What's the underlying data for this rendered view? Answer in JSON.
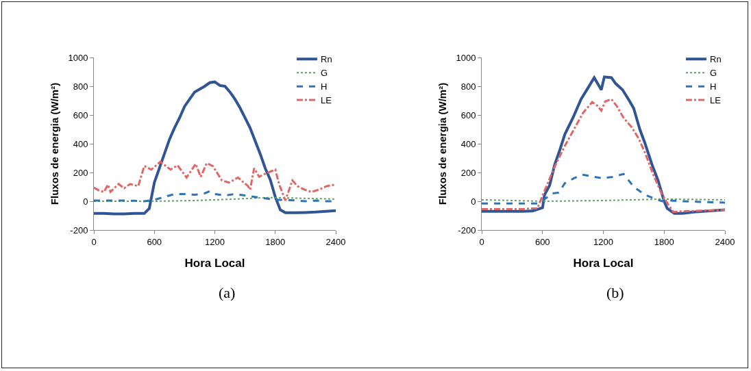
{
  "chart_data": [
    {
      "type": "line",
      "xlabel": "Hora Local",
      "ylabel": "Fluxos de energia (W/m²)",
      "annotations": [
        "(a)"
      ],
      "xlim": [
        0,
        2400
      ],
      "xticks": [
        0,
        600,
        1200,
        1800,
        2400
      ],
      "ylim": [
        -200,
        1000
      ],
      "yticks": [
        -200,
        0,
        200,
        400,
        600,
        800,
        1000
      ],
      "grid": false,
      "legend": "top right",
      "series": [
        {
          "name": "Rn",
          "color": "#2f5597",
          "line_style": "solid",
          "x": [
            0,
            100,
            200,
            300,
            400,
            500,
            550,
            600,
            650,
            700,
            750,
            800,
            850,
            900,
            950,
            1000,
            1050,
            1100,
            1150,
            1200,
            1250,
            1300,
            1350,
            1400,
            1450,
            1500,
            1550,
            1600,
            1650,
            1700,
            1750,
            1800,
            1850,
            1900,
            2000,
            2100,
            2200,
            2300,
            2400
          ],
          "values": [
            -85,
            -85,
            -88,
            -88,
            -85,
            -85,
            -50,
            130,
            230,
            330,
            430,
            510,
            580,
            660,
            710,
            760,
            780,
            800,
            825,
            830,
            805,
            800,
            760,
            710,
            650,
            580,
            510,
            420,
            330,
            230,
            150,
            30,
            -60,
            -80,
            -80,
            -78,
            -75,
            -70,
            -65
          ]
        },
        {
          "name": "G",
          "color": "#4caf50",
          "line_style": "dotted",
          "x": [
            0,
            600,
            1000,
            1400,
            1700,
            1800,
            2100,
            2400
          ],
          "values": [
            0,
            0,
            5,
            15,
            25,
            25,
            20,
            15
          ]
        },
        {
          "name": "H",
          "color": "#2e75b6",
          "line_style": "dashed",
          "x": [
            0,
            100,
            200,
            300,
            400,
            500,
            600,
            700,
            800,
            900,
            1000,
            1100,
            1150,
            1200,
            1300,
            1400,
            1500,
            1600,
            1700,
            1800,
            1900,
            2000,
            2100,
            2200,
            2300,
            2400
          ],
          "values": [
            5,
            5,
            5,
            5,
            3,
            0,
            10,
            30,
            50,
            50,
            45,
            55,
            70,
            50,
            40,
            50,
            40,
            30,
            20,
            10,
            10,
            5,
            0,
            5,
            0,
            0
          ]
        },
        {
          "name": "LE",
          "color": "#e06666",
          "line_style": "dashdot",
          "x": [
            0,
            50,
            100,
            140,
            165,
            245,
            300,
            360,
            440,
            500,
            570,
            660,
            760,
            830,
            920,
            1010,
            1060,
            1120,
            1180,
            1270,
            1340,
            1430,
            1530,
            1550,
            1590,
            1640,
            1710,
            1800,
            1840,
            1900,
            1970,
            2020,
            2090,
            2160,
            2230,
            2310,
            2390
          ],
          "values": [
            95,
            75,
            65,
            115,
            65,
            120,
            90,
            120,
            105,
            245,
            220,
            275,
            220,
            250,
            165,
            260,
            170,
            265,
            245,
            145,
            130,
            165,
            105,
            80,
            230,
            170,
            195,
            220,
            115,
            5,
            145,
            105,
            80,
            65,
            80,
            105,
            115
          ]
        }
      ]
    },
    {
      "type": "line",
      "xlabel": "Hora Local",
      "ylabel": "Fluxos de energia (W/m²)",
      "annotations": [
        "(b)"
      ],
      "xlim": [
        0,
        2400
      ],
      "xticks": [
        0,
        600,
        1200,
        1800,
        2400
      ],
      "ylim": [
        -200,
        1000
      ],
      "yticks": [
        -200,
        0,
        200,
        400,
        600,
        800,
        1000
      ],
      "grid": false,
      "legend": "top right",
      "series": [
        {
          "name": "Rn",
          "color": "#2f5597",
          "line_style": "solid",
          "x": [
            0,
            100,
            200,
            300,
            400,
            500,
            600,
            620,
            670,
            720,
            770,
            820,
            900,
            980,
            1050,
            1110,
            1180,
            1210,
            1280,
            1320,
            1390,
            1460,
            1500,
            1560,
            1610,
            1680,
            1740,
            1800,
            1830,
            1900,
            1980,
            2090,
            2400
          ],
          "values": [
            -70,
            -70,
            -70,
            -70,
            -70,
            -68,
            -45,
            45,
            110,
            255,
            355,
            465,
            580,
            710,
            790,
            860,
            775,
            865,
            860,
            820,
            775,
            695,
            645,
            500,
            405,
            255,
            145,
            0,
            -50,
            -85,
            -85,
            -75,
            -60
          ]
        },
        {
          "name": "G",
          "color": "#4caf50",
          "line_style": "dotted",
          "x": [
            0,
            600,
            1200,
            1800,
            2400
          ],
          "values": [
            10,
            0,
            5,
            15,
            10
          ]
        },
        {
          "name": "H",
          "color": "#2e75b6",
          "line_style": "dashed",
          "x": [
            0,
            100,
            200,
            300,
            400,
            500,
            550,
            600,
            700,
            760,
            820,
            910,
            990,
            1070,
            1190,
            1300,
            1400,
            1500,
            1610,
            1700,
            1780,
            1860,
            1980,
            2400
          ],
          "values": [
            -15,
            -15,
            -15,
            -15,
            -15,
            -15,
            -15,
            5,
            55,
            60,
            125,
            160,
            185,
            175,
            160,
            170,
            190,
            100,
            45,
            20,
            0,
            5,
            0,
            -10
          ]
        },
        {
          "name": "LE",
          "color": "#e06666",
          "line_style": "dashdot",
          "x": [
            0,
            100,
            200,
            300,
            400,
            500,
            550,
            600,
            720,
            820,
            910,
            1000,
            1090,
            1140,
            1180,
            1220,
            1280,
            1330,
            1400,
            1480,
            1550,
            1610,
            1690,
            1770,
            1820,
            1890,
            1980,
            2400
          ],
          "values": [
            -55,
            -55,
            -55,
            -55,
            -55,
            -50,
            -50,
            40,
            240,
            385,
            500,
            615,
            690,
            665,
            630,
            695,
            710,
            665,
            580,
            515,
            435,
            340,
            190,
            60,
            0,
            -75,
            -70,
            -60
          ]
        }
      ]
    }
  ]
}
